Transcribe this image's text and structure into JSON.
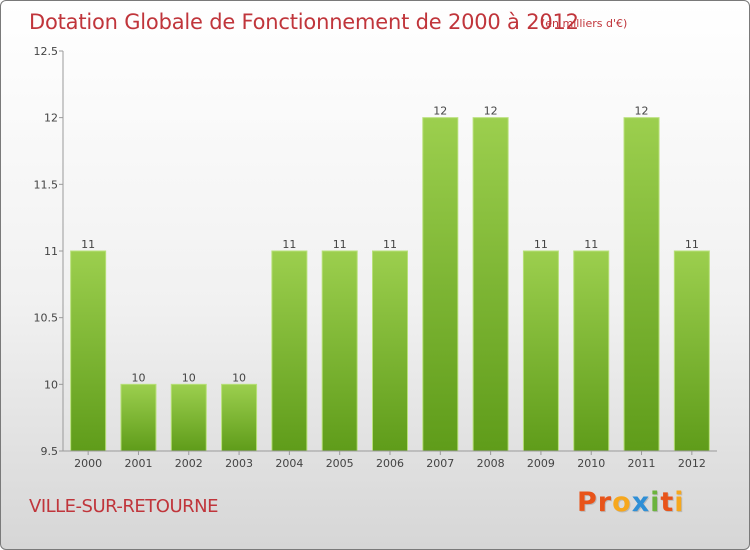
{
  "chart_data": {
    "type": "bar",
    "title": "Dotation Globale de Fonctionnement de 2000 à 2012",
    "subtitle": "(en milliers d'€)",
    "categories": [
      "2000",
      "2001",
      "2002",
      "2003",
      "2004",
      "2005",
      "2006",
      "2007",
      "2008",
      "2009",
      "2010",
      "2011",
      "2012"
    ],
    "values": [
      11,
      10,
      10,
      10,
      11,
      11,
      11,
      12,
      12,
      11,
      11,
      12,
      11
    ],
    "value_labels": [
      "11",
      "10",
      "10",
      "10",
      "11",
      "11",
      "11",
      "12",
      "12",
      "11",
      "11",
      "12",
      "11"
    ],
    "ylim": [
      9.5,
      12.5
    ],
    "yticks": [
      "9.5",
      "10",
      "10.5",
      "11",
      "11.5",
      "12",
      "12.5"
    ],
    "grid": false,
    "bar_color": "#8cc43c"
  },
  "footer": {
    "commune": "VILLE-SUR-RETOURNE",
    "logo_letters": [
      "P",
      "r",
      "o",
      "x",
      "i",
      "t",
      "i"
    ],
    "logo_colors": [
      "#e8541a",
      "#e8541a",
      "#f6a71d",
      "#2f8fd6",
      "#6cb33e",
      "#e8541a",
      "#f6a71d"
    ]
  }
}
